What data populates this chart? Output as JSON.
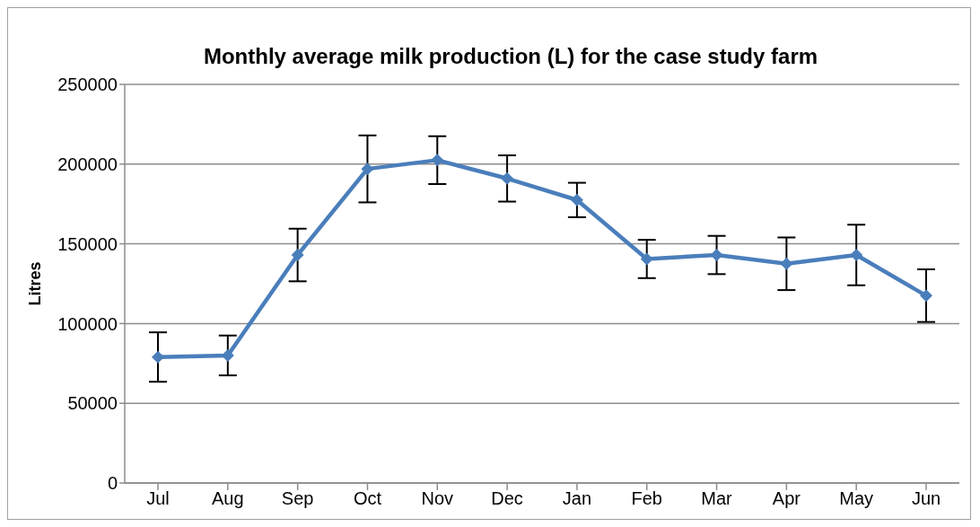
{
  "chart_data": {
    "type": "line",
    "title": "Monthly average milk production (L) for the case study farm",
    "ylabel": "Litres",
    "categories": [
      "Jul",
      "Aug",
      "Sep",
      "Oct",
      "Nov",
      "Dec",
      "Jan",
      "Feb",
      "Mar",
      "Apr",
      "May",
      "Jun"
    ],
    "series": [
      {
        "color": "#4a7ebb",
        "values": [
          79000,
          80000,
          143000,
          197000,
          202500,
          191000,
          177500,
          140500,
          143000,
          137500,
          143000,
          117500
        ],
        "errors": [
          15500,
          12500,
          16500,
          21000,
          15000,
          14500,
          10800,
          12000,
          12000,
          16500,
          19000,
          16500
        ]
      }
    ],
    "ylim": [
      0,
      250000
    ],
    "yticks": [
      0,
      50000,
      100000,
      150000,
      200000,
      250000
    ],
    "grid": "y",
    "legend": false,
    "marker": "diamond",
    "line_style": "solid"
  }
}
